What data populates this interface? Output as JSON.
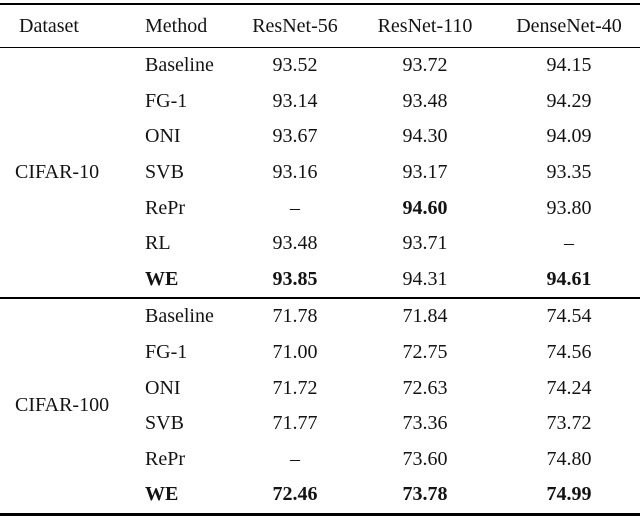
{
  "table": {
    "columns": [
      "Dataset",
      "Method",
      "ResNet-56",
      "ResNet-110",
      "DenseNet-40"
    ],
    "sections": [
      {
        "dataset": "CIFAR-10",
        "rows": [
          {
            "method": "Baseline",
            "values": [
              "93.52",
              "93.72",
              "94.15"
            ],
            "bold_method": false,
            "bold_values": [
              false,
              false,
              false
            ]
          },
          {
            "method": "FG-1",
            "values": [
              "93.14",
              "93.48",
              "94.29"
            ],
            "bold_method": false,
            "bold_values": [
              false,
              false,
              false
            ]
          },
          {
            "method": "ONI",
            "values": [
              "93.67",
              "94.30",
              "94.09"
            ],
            "bold_method": false,
            "bold_values": [
              false,
              false,
              false
            ]
          },
          {
            "method": "SVB",
            "values": [
              "93.16",
              "93.17",
              "93.35"
            ],
            "bold_method": false,
            "bold_values": [
              false,
              false,
              false
            ]
          },
          {
            "method": "RePr",
            "values": [
              "–",
              "94.60",
              "93.80"
            ],
            "bold_method": false,
            "bold_values": [
              false,
              true,
              false
            ]
          },
          {
            "method": "RL",
            "values": [
              "93.48",
              "93.71",
              "–"
            ],
            "bold_method": false,
            "bold_values": [
              false,
              false,
              false
            ]
          },
          {
            "method": "WE",
            "values": [
              "93.85",
              "94.31",
              "94.61"
            ],
            "bold_method": true,
            "bold_values": [
              true,
              false,
              true
            ]
          }
        ]
      },
      {
        "dataset": "CIFAR-100",
        "rows": [
          {
            "method": "Baseline",
            "values": [
              "71.78",
              "71.84",
              "74.54"
            ],
            "bold_method": false,
            "bold_values": [
              false,
              false,
              false
            ]
          },
          {
            "method": "FG-1",
            "values": [
              "71.00",
              "72.75",
              "74.56"
            ],
            "bold_method": false,
            "bold_values": [
              false,
              false,
              false
            ]
          },
          {
            "method": "ONI",
            "values": [
              "71.72",
              "72.63",
              "74.24"
            ],
            "bold_method": false,
            "bold_values": [
              false,
              false,
              false
            ]
          },
          {
            "method": "SVB",
            "values": [
              "71.77",
              "73.36",
              "73.72"
            ],
            "bold_method": false,
            "bold_values": [
              false,
              false,
              false
            ]
          },
          {
            "method": "RePr",
            "values": [
              "–",
              "73.60",
              "74.80"
            ],
            "bold_method": false,
            "bold_values": [
              false,
              false,
              false
            ]
          },
          {
            "method": "WE",
            "values": [
              "72.46",
              "73.78",
              "74.99"
            ],
            "bold_method": true,
            "bold_values": [
              true,
              true,
              true
            ]
          }
        ]
      }
    ]
  }
}
